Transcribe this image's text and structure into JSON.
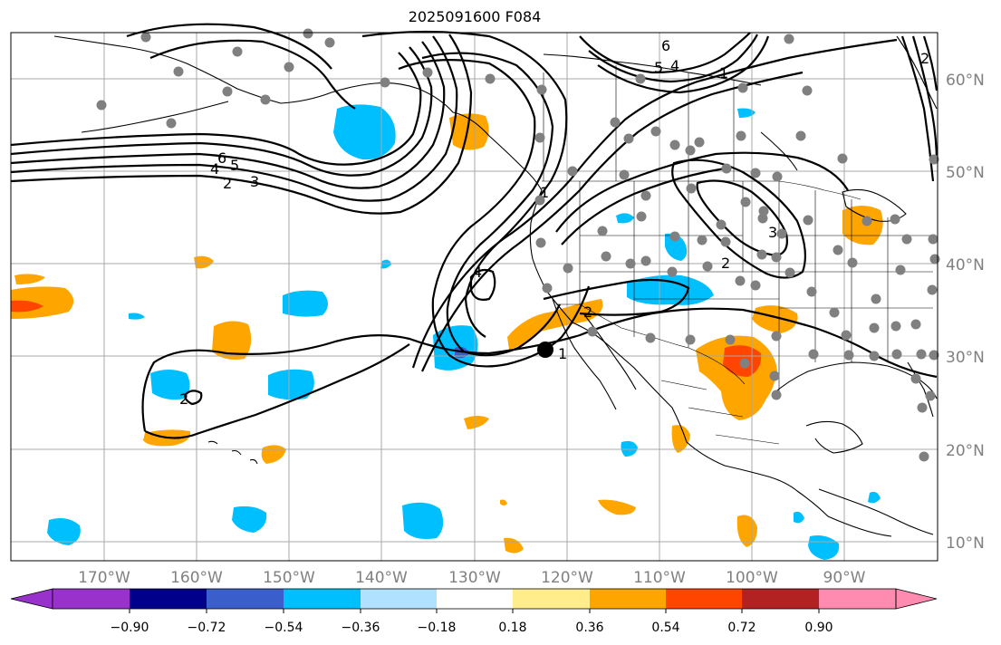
{
  "title": "2025091600 F084",
  "longitude_labels": [
    "170°W",
    "160°W",
    "150°W",
    "140°W",
    "130°W",
    "120°W",
    "110°W",
    "100°W",
    "90°W"
  ],
  "latitude_labels": [
    "60°N",
    "50°N",
    "40°N",
    "30°N",
    "20°N",
    "10°N"
  ],
  "colorbar": {
    "tick_labels": [
      "−0.90",
      "−0.72",
      "−0.54",
      "−0.36",
      "−0.18",
      "0.18",
      "0.36",
      "0.54",
      "0.72",
      "0.90"
    ],
    "colors": [
      "#9932cc",
      "#00008b",
      "#3a5fcd",
      "#00bfff",
      "#b0e2ff",
      "#ffffff",
      "#ffec8b",
      "#ffa500",
      "#ff4500",
      "#b22222",
      "#ff8bb0"
    ]
  },
  "contour_labels": [
    "6",
    "5",
    "4",
    "3",
    "2",
    "1",
    "4",
    "3",
    "2",
    "1",
    "2",
    "6",
    "5",
    "4",
    "1",
    "2",
    "2"
  ],
  "colors": {
    "grid": "#a8a8a8",
    "station": "#808080",
    "marker": "#000000"
  }
}
